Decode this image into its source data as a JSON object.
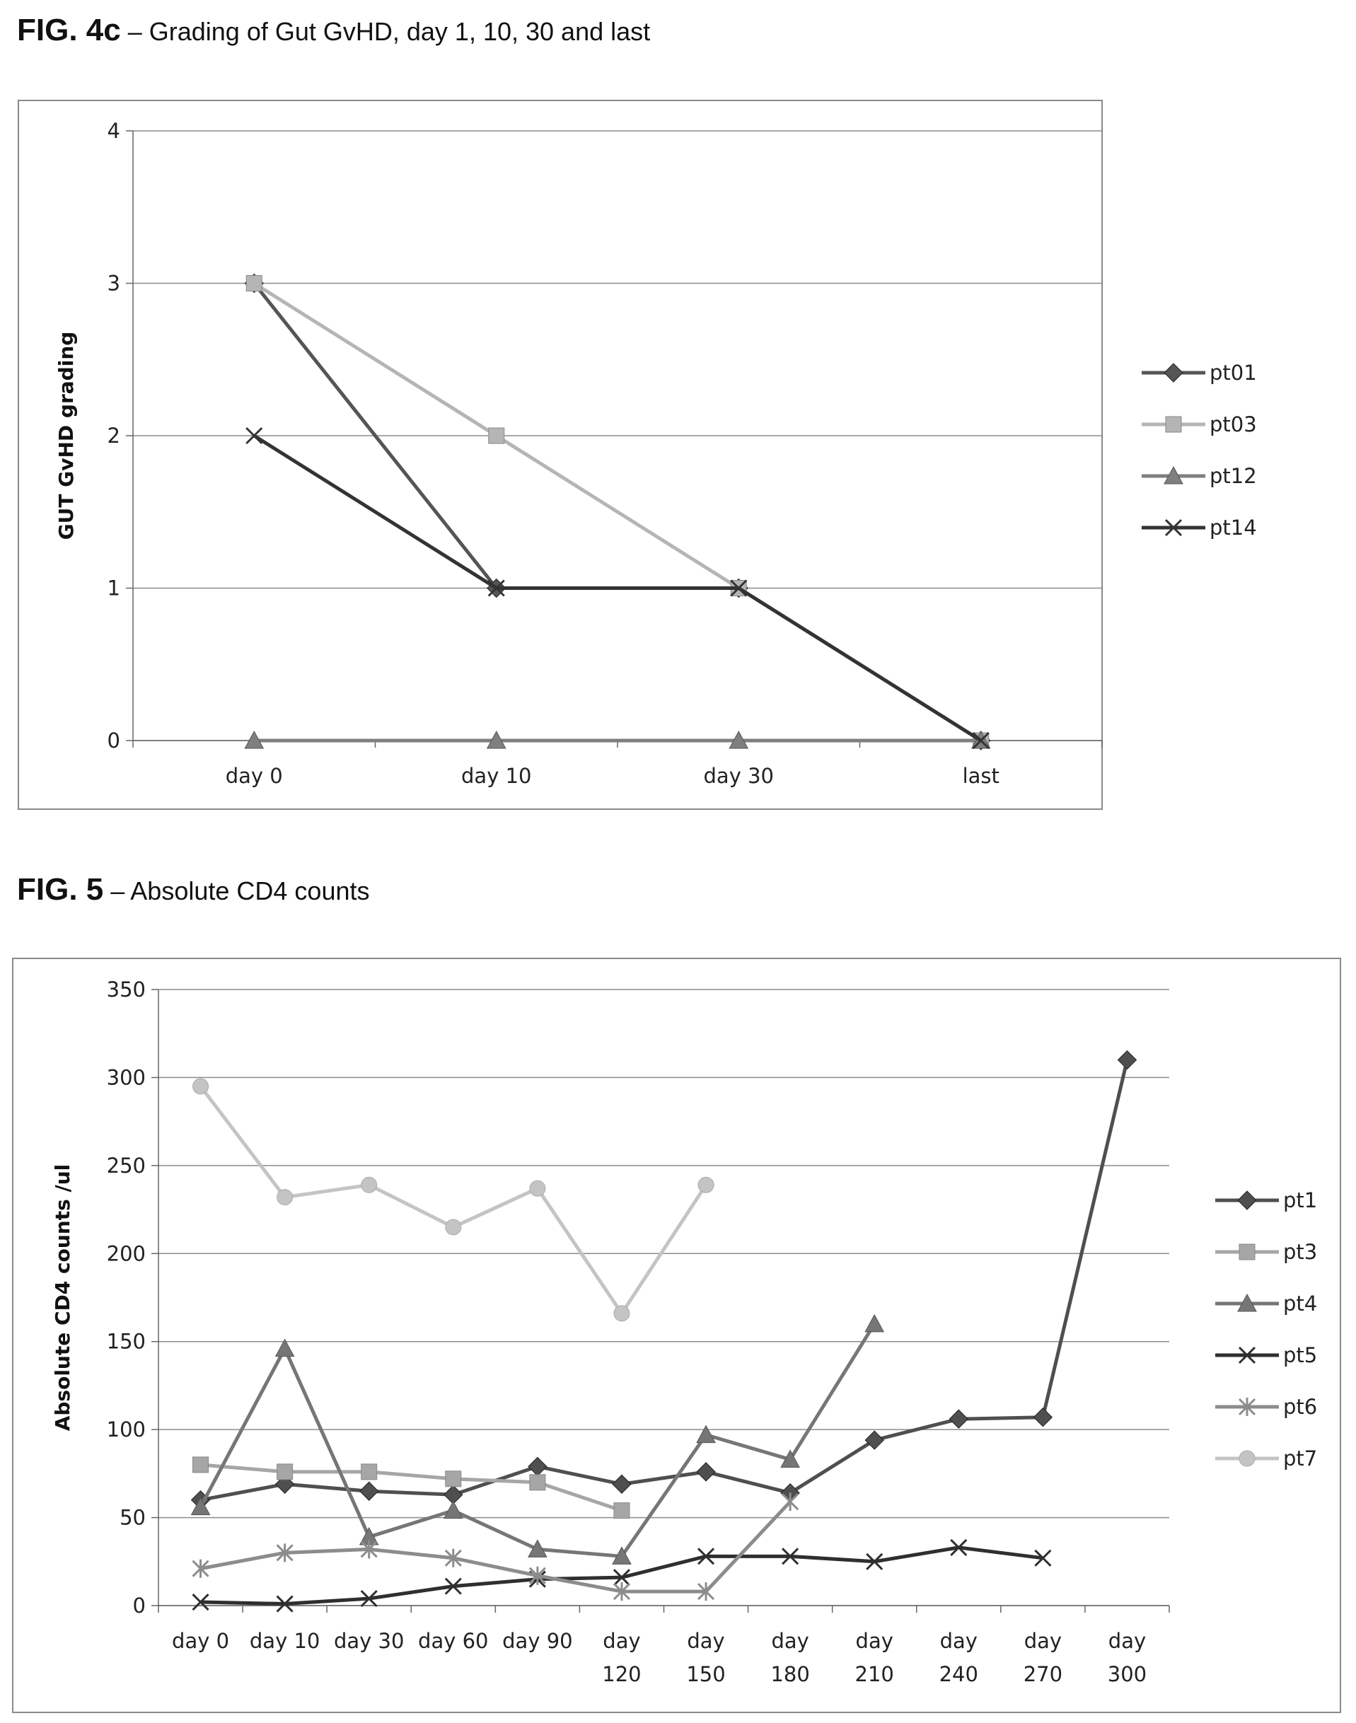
{
  "figures": [
    {
      "number": "FIG. 4c",
      "separator": " – ",
      "caption": "Grading of Gut GvHD, day 1, 10, 30 and last"
    },
    {
      "number": "FIG. 5",
      "separator": " – ",
      "caption": "Absolute CD4 counts"
    }
  ],
  "chart_data": [
    {
      "type": "line",
      "title": "",
      "xlabel": "",
      "ylabel": "GUT GvHD grading",
      "ylim": [
        0,
        4
      ],
      "yticks": [
        "0",
        "1",
        "2",
        "3",
        "4"
      ],
      "grid": "horizontal major gridlines",
      "legend_position": "right",
      "categories": [
        "day 0",
        "day 10",
        "day 30",
        "last"
      ],
      "series": [
        {
          "name": "pt01",
          "marker": "diamond",
          "color": "#555555",
          "values": [
            3,
            1,
            1,
            0
          ]
        },
        {
          "name": "pt03",
          "marker": "square",
          "color": "#b5b5b5",
          "values": [
            3,
            2,
            1,
            0
          ]
        },
        {
          "name": "pt12",
          "marker": "triangle",
          "color": "#7f7f7f",
          "values": [
            0,
            0,
            0,
            0
          ]
        },
        {
          "name": "pt14",
          "marker": "x",
          "color": "#333333",
          "values": [
            2,
            1,
            1,
            0
          ]
        }
      ]
    },
    {
      "type": "line",
      "title": "",
      "xlabel": "",
      "ylabel": "Absolute CD4 counts /ul",
      "ylim": [
        0,
        350
      ],
      "yticks": [
        "0",
        "50",
        "100",
        "150",
        "200",
        "250",
        "300",
        "350"
      ],
      "grid": "horizontal major gridlines",
      "legend_position": "right",
      "categories": [
        "day 0",
        "day 10",
        "day 30",
        "day 60",
        "day 90",
        "day 120",
        "day 150",
        "day 180",
        "day 210",
        "day 240",
        "day 270",
        "day 300"
      ],
      "series": [
        {
          "name": "pt1",
          "marker": "diamond",
          "color": "#4f4f4f",
          "values": [
            60,
            69,
            65,
            63,
            79,
            69,
            76,
            64,
            94,
            106,
            107,
            310
          ]
        },
        {
          "name": "pt3",
          "marker": "square",
          "color": "#a6a6a6",
          "values": [
            80,
            76,
            76,
            72,
            70,
            54,
            null,
            null,
            null,
            null,
            null,
            null
          ]
        },
        {
          "name": "pt4",
          "marker": "triangle",
          "color": "#767676",
          "values": [
            56,
            146,
            39,
            54,
            32,
            28,
            97,
            83,
            160,
            null,
            null,
            null
          ]
        },
        {
          "name": "pt5",
          "marker": "x",
          "color": "#2f2f2f",
          "values": [
            2,
            1,
            4,
            11,
            15,
            16,
            28,
            28,
            25,
            33,
            27,
            null
          ]
        },
        {
          "name": "pt6",
          "marker": "star",
          "color": "#8c8c8c",
          "values": [
            21,
            30,
            32,
            27,
            17,
            8,
            8,
            59,
            null,
            null,
            null,
            null
          ]
        },
        {
          "name": "pt7",
          "marker": "circle",
          "color": "#c4c4c4",
          "values": [
            295,
            232,
            239,
            215,
            237,
            166,
            239,
            null,
            null,
            null,
            null,
            null
          ]
        }
      ]
    }
  ]
}
